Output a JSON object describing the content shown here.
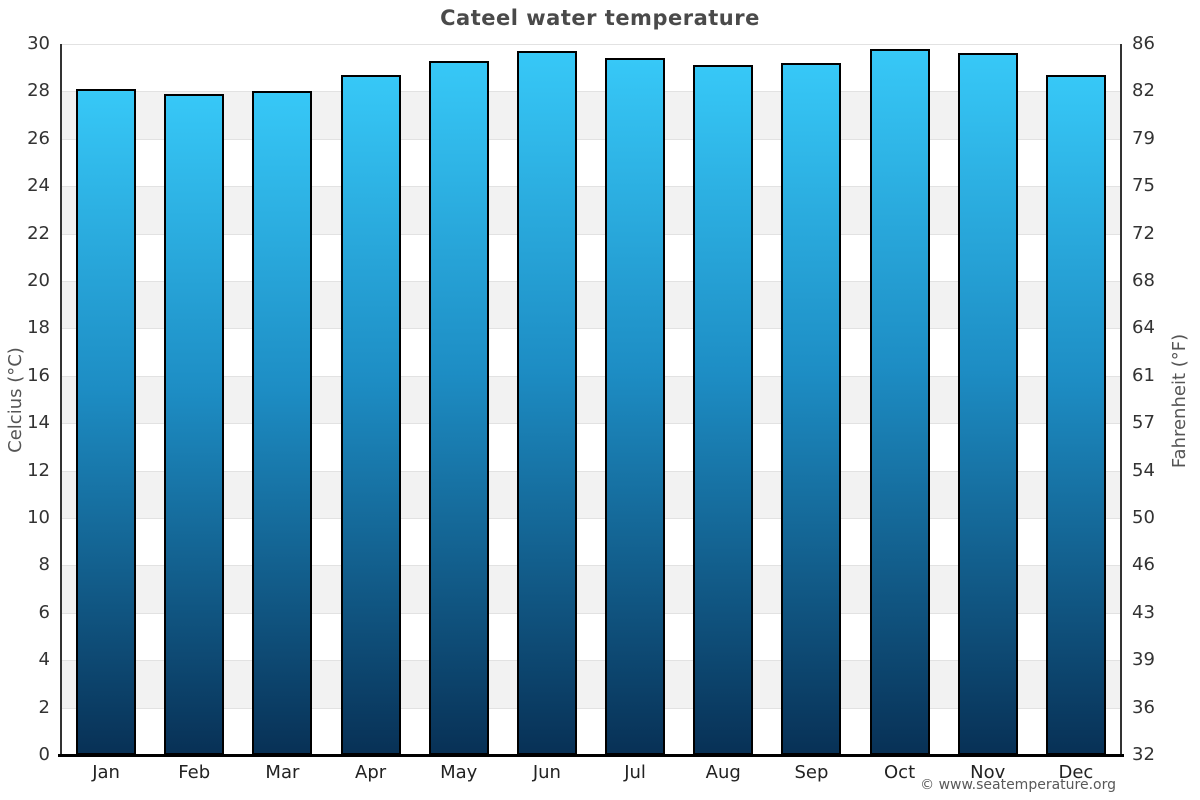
{
  "page": {
    "footer": "© www.seatemperature.org"
  },
  "chart_data": {
    "type": "bar",
    "title": "Cateel water temperature",
    "categories": [
      "Jan",
      "Feb",
      "Mar",
      "Apr",
      "May",
      "Jun",
      "Jul",
      "Aug",
      "Sep",
      "Oct",
      "Nov",
      "Dec"
    ],
    "values": [
      28.1,
      27.9,
      28.0,
      28.7,
      29.3,
      29.7,
      29.4,
      29.1,
      29.2,
      29.8,
      29.6,
      28.7
    ],
    "ylabel_left": "Celcius (°C)",
    "ylabel_right": "Fahrenheit (°F)",
    "ylim": [
      0,
      30
    ],
    "y_tick_step_celsius": 2,
    "y_ticks_celsius": [
      "30",
      "28",
      "26",
      "24",
      "22",
      "20",
      "18",
      "16",
      "14",
      "12",
      "10",
      "8",
      "6",
      "4",
      "2",
      "0"
    ],
    "y_ticks_fahrenheit": [
      "86",
      "82",
      "79",
      "75",
      "72",
      "68",
      "64",
      "61",
      "57",
      "54",
      "50",
      "46",
      "43",
      "39",
      "36",
      "32"
    ],
    "grid": true,
    "legend": "none",
    "colors": {
      "bar_top": "#37c8f7",
      "bar_mid": "#1d8dc4",
      "bar_bottom": "#083156",
      "bar_border": "#000000",
      "band_gray": "#f2f2f2",
      "band_white": "#ffffff",
      "grid_line": "#e2e2e2",
      "axis_line": "#333333",
      "bottom_axis_line": "#000000"
    }
  }
}
